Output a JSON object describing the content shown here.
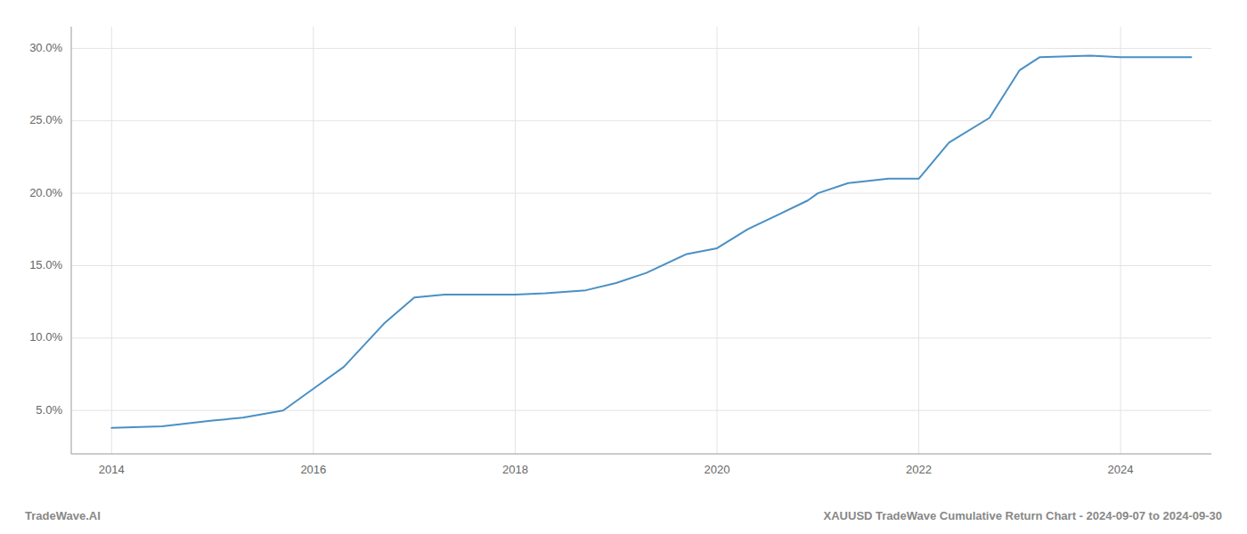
{
  "chart_data": {
    "type": "line",
    "title": "XAUUSD TradeWave Cumulative Return Chart - 2024-09-07 to 2024-09-30",
    "annotations": [
      "TradeWave.AI"
    ],
    "x": [
      2014.0,
      2014.5,
      2015.0,
      2015.3,
      2015.7,
      2016.0,
      2016.3,
      2016.7,
      2017.0,
      2017.3,
      2017.7,
      2018.0,
      2018.3,
      2018.7,
      2019.0,
      2019.3,
      2019.7,
      2020.0,
      2020.3,
      2020.6,
      2020.9,
      2021.0,
      2021.3,
      2021.7,
      2022.0,
      2022.3,
      2022.7,
      2023.0,
      2023.2,
      2023.7,
      2024.0,
      2024.7
    ],
    "values": [
      3.8,
      3.9,
      4.3,
      4.5,
      5.0,
      6.5,
      8.0,
      11.0,
      12.8,
      13.0,
      13.0,
      13.0,
      13.1,
      13.3,
      13.8,
      14.5,
      15.8,
      16.2,
      17.5,
      18.5,
      19.5,
      20.0,
      20.7,
      21.0,
      21.0,
      23.5,
      25.2,
      28.5,
      29.4,
      29.5,
      29.4,
      29.4
    ],
    "color": "#4a90c4",
    "xlim": [
      2013.6,
      2024.9
    ],
    "ylim": [
      2.0,
      31.5
    ],
    "xticks": [
      2014,
      2016,
      2018,
      2020,
      2022,
      2024
    ],
    "yticks": [
      {
        "value": 5.0,
        "label": "5.0%"
      },
      {
        "value": 10.0,
        "label": "10.0%"
      },
      {
        "value": 15.0,
        "label": "15.0%"
      },
      {
        "value": 20.0,
        "label": "20.0%"
      },
      {
        "value": 25.0,
        "label": "25.0%"
      },
      {
        "value": 30.0,
        "label": "30.0%"
      }
    ],
    "grid": true
  }
}
